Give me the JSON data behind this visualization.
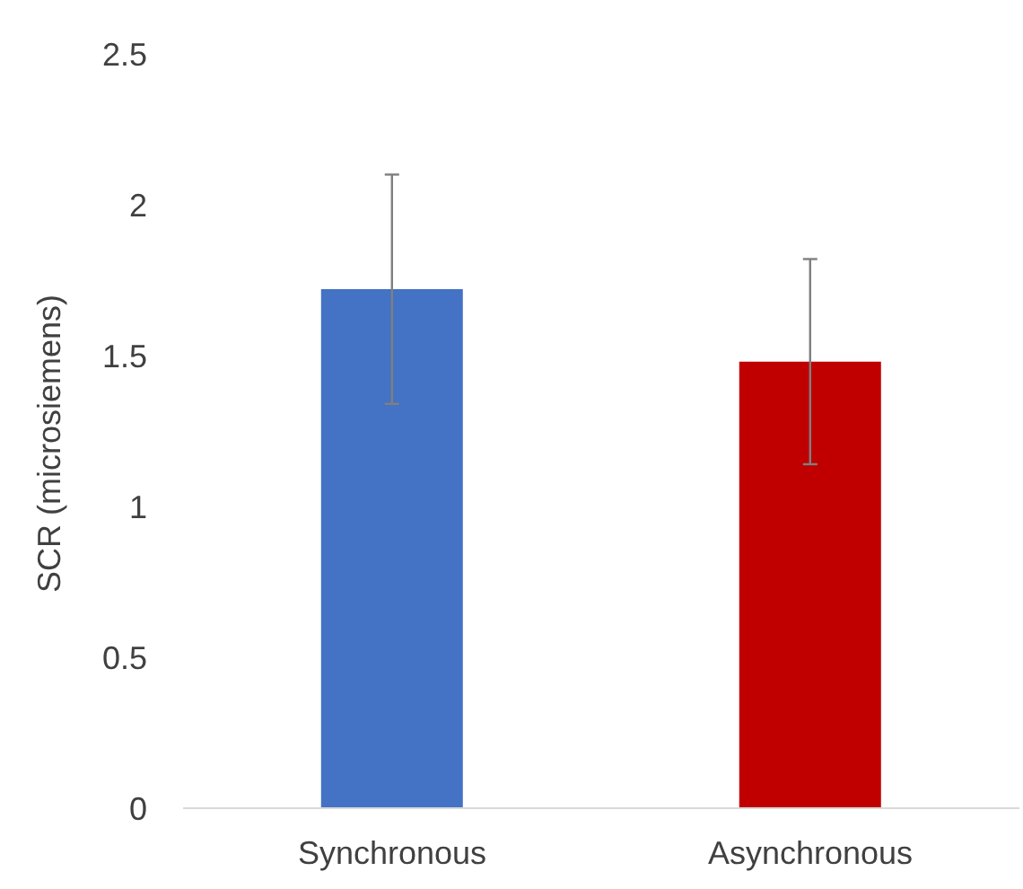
{
  "chart_data": {
    "type": "bar",
    "ylabel": "SCR (microsiemens)",
    "categories": [
      "Synchronous",
      "Asynchronous"
    ],
    "values": [
      1.72,
      1.48
    ],
    "colors": [
      "#4472c4",
      "#c00000"
    ],
    "errors": [
      0.38,
      0.34
    ],
    "ylim": [
      0,
      2.5
    ],
    "yticks": [
      0,
      0.5,
      1,
      1.5,
      2,
      2.5
    ],
    "grid": false,
    "legend": false
  }
}
